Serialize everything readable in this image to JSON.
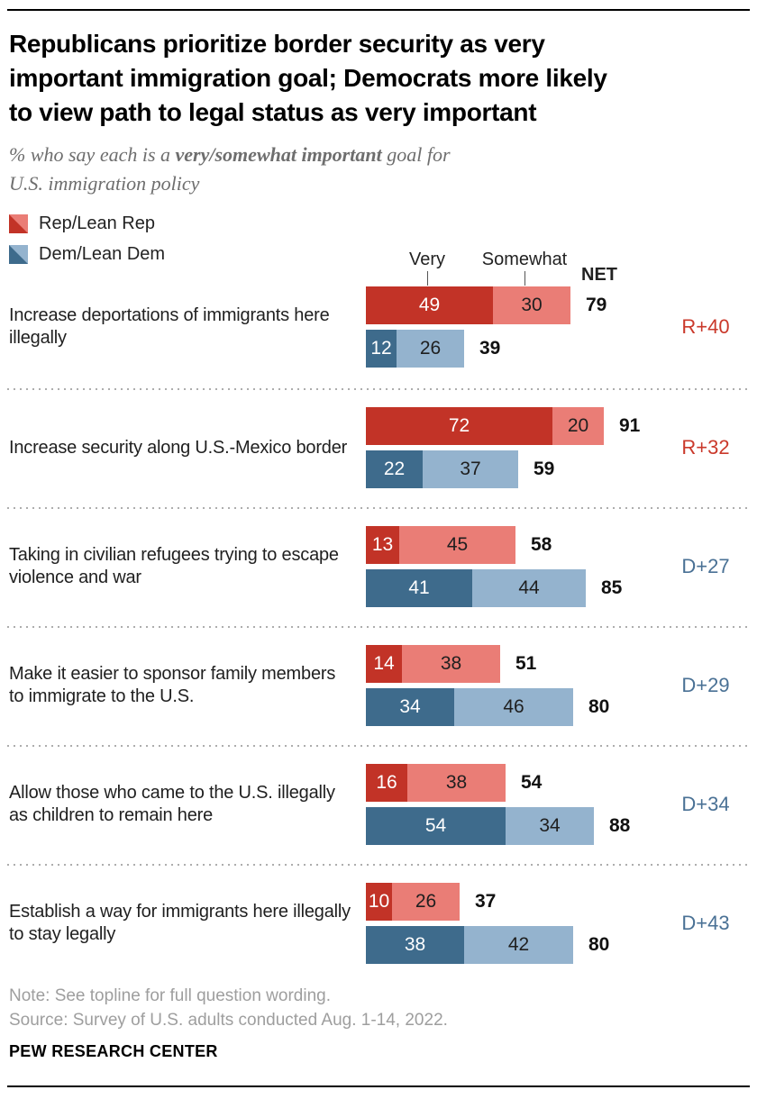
{
  "chart_data": {
    "type": "bar",
    "subtype": "horizontal-stacked-grouped",
    "title": "Republicans prioritize border security as very important immigration goal; Democrats more likely to view path to legal status as very important",
    "subtitle": "% who say each is a very/somewhat important goal for U.S. immigration policy",
    "stack_segments": [
      "Very",
      "Somewhat"
    ],
    "series_groups": [
      "Rep/Lean Rep",
      "Dem/Lean Dem"
    ],
    "xlim": [
      0,
      100
    ],
    "legend_position": "top-left",
    "grid": false,
    "rows": [
      {
        "label": "Increase deportations of immigrants here illegally",
        "rep": {
          "very": 49,
          "somewhat": 30,
          "net": 79
        },
        "dem": {
          "very": 12,
          "somewhat": 26,
          "net": 39
        },
        "diff": {
          "text": "R+40",
          "color": "#ca392b"
        }
      },
      {
        "label": "Increase security along U.S.-Mexico border",
        "rep": {
          "very": 72,
          "somewhat": 20,
          "net": 91
        },
        "dem": {
          "very": 22,
          "somewhat": 37,
          "net": 59
        },
        "diff": {
          "text": "R+32",
          "color": "#ca392b"
        }
      },
      {
        "label": "Taking in civilian refugees trying to escape violence and war",
        "rep": {
          "very": 13,
          "somewhat": 45,
          "net": 58
        },
        "dem": {
          "very": 41,
          "somewhat": 44,
          "net": 85
        },
        "diff": {
          "text": "D+27",
          "color": "#4a7195"
        }
      },
      {
        "label": "Make it easier to sponsor family members to immigrate to the U.S.",
        "rep": {
          "very": 14,
          "somewhat": 38,
          "net": 51
        },
        "dem": {
          "very": 34,
          "somewhat": 46,
          "net": 80
        },
        "diff": {
          "text": "D+29",
          "color": "#4a7195"
        }
      },
      {
        "label": "Allow those who came to the U.S. illegally as children to remain here",
        "rep": {
          "very": 16,
          "somewhat": 38,
          "net": 54
        },
        "dem": {
          "very": 54,
          "somewhat": 34,
          "net": 88
        },
        "diff": {
          "text": "D+34",
          "color": "#4a7195"
        }
      },
      {
        "label": "Establish a way for immigrants here illegally to stay legally",
        "rep": {
          "very": 10,
          "somewhat": 26,
          "net": 37
        },
        "dem": {
          "very": 38,
          "somewhat": 42,
          "net": 80
        },
        "diff": {
          "text": "D+43",
          "color": "#4a7195"
        }
      }
    ]
  },
  "header": {
    "title_lines": [
      "Republicans prioritize border security as very",
      "important immigration goal; Democrats more likely",
      "to view path to legal status as very important"
    ],
    "subtitle_pre": "% who say each is a ",
    "subtitle_bold": "very/somewhat important",
    "subtitle_post": " goal for",
    "subtitle_line2": "U.S. immigration policy"
  },
  "legend": {
    "rep_label": "Rep/Lean Rep",
    "dem_label": "Dem/Lean Dem"
  },
  "columns": {
    "very": "Very",
    "somewhat": "Somewhat",
    "net": "NET"
  },
  "footer": {
    "note": "Note: See topline for full question wording.",
    "source": "Source: Survey of U.S. adults conducted Aug. 1-14, 2022.",
    "brand": "PEW RESEARCH CENTER"
  },
  "colors": {
    "rep_very": "#c23327",
    "rep_somewhat": "#ea7d76",
    "dem_very": "#3e6b8c",
    "dem_somewhat": "#94b3ce",
    "diff_rep": "#ca392b",
    "diff_dem": "#4a7195",
    "subtitle_gray": "#6e6e6e",
    "note_gray": "#9e9e9e"
  }
}
